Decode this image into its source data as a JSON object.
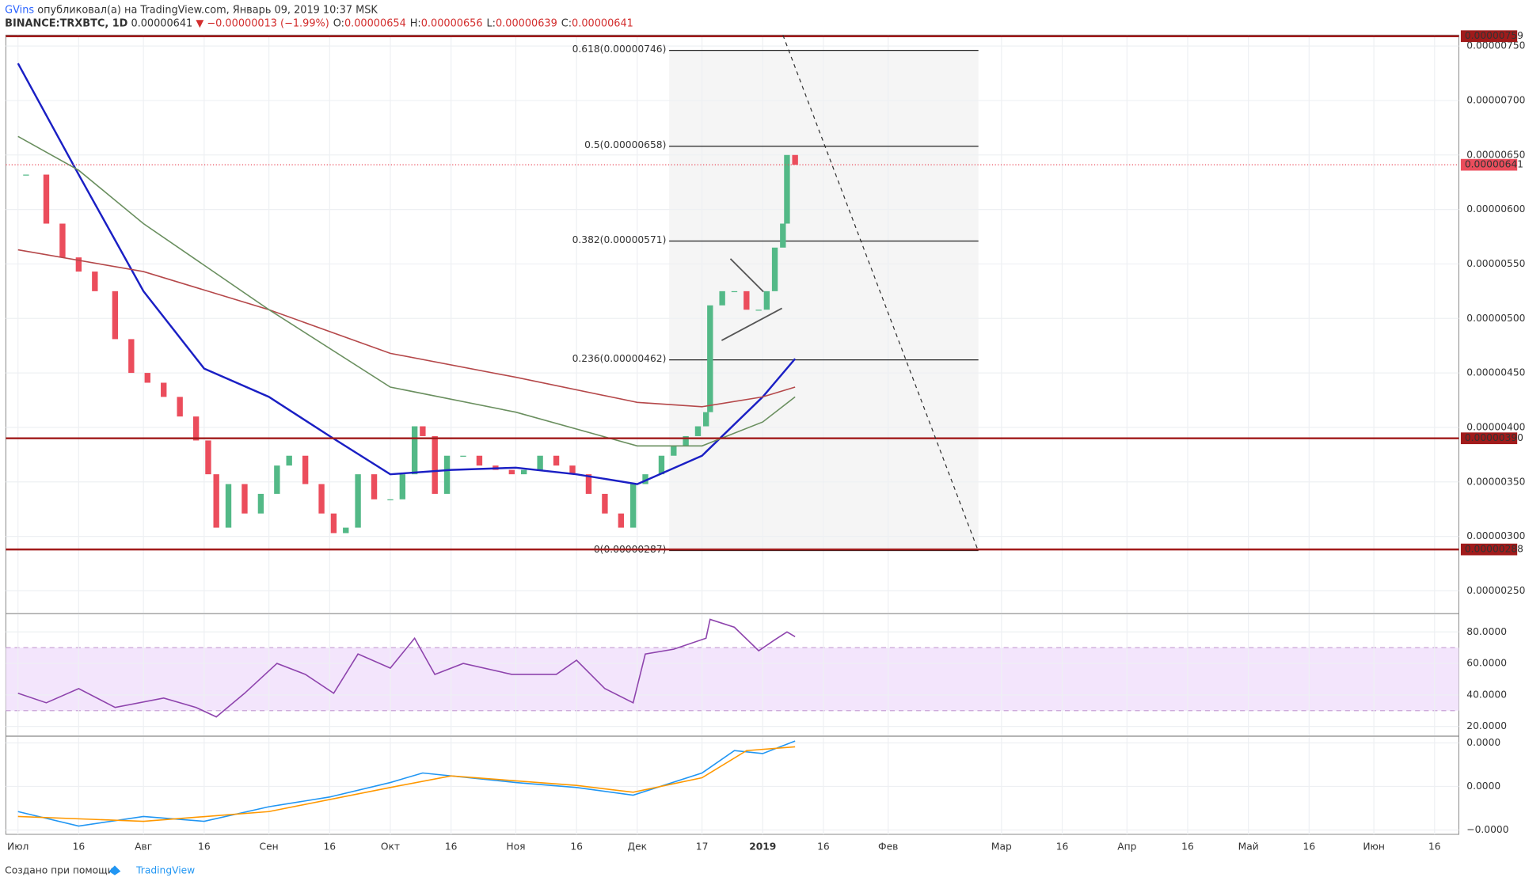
{
  "header": {
    "author": "GVins",
    "published": "опубликовал(а) на TradingView.com, Январь 09, 2019 10:37 MSK",
    "symbol": "BINANCE:TRXBTC, 1D",
    "last": "0.00000641",
    "arrow": "▼",
    "change": "−0.00000013 (−1.99%)",
    "ohlc": [
      {
        "key": "O:",
        "value": "0.00000654"
      },
      {
        "key": "H:",
        "value": "0.00000656"
      },
      {
        "key": "L:",
        "value": "0.00000639"
      },
      {
        "key": "C:",
        "value": "0.00000641"
      }
    ]
  },
  "footer": {
    "text": "Создано при помощи",
    "brand": "TradingView"
  },
  "chart_data": [
    {
      "type": "candlestick",
      "up_color": "#53b987",
      "down_color": "#eb4d5c",
      "xlim": [
        -3,
        356
      ],
      "xticks": [
        {
          "value": 0,
          "label": "Июл"
        },
        {
          "value": 15,
          "label": "16"
        },
        {
          "value": 31,
          "label": "Авг"
        },
        {
          "value": 46,
          "label": "16"
        },
        {
          "value": 62,
          "label": "Сен"
        },
        {
          "value": 77,
          "label": "16"
        },
        {
          "value": 92,
          "label": "Окт"
        },
        {
          "value": 107,
          "label": "16"
        },
        {
          "value": 123,
          "label": "Ноя"
        },
        {
          "value": 138,
          "label": "16"
        },
        {
          "value": 153,
          "label": "Дек"
        },
        {
          "value": 169,
          "label": "17"
        },
        {
          "value": 184,
          "label": "2019"
        },
        {
          "value": 199,
          "label": "16"
        },
        {
          "value": 215,
          "label": "Фев"
        },
        {
          "value": 243,
          "label": "Мар"
        },
        {
          "value": 258,
          "label": "16"
        },
        {
          "value": 274,
          "label": "Апр"
        },
        {
          "value": 289,
          "label": "16"
        },
        {
          "value": 304,
          "label": "Май"
        },
        {
          "value": 319,
          "label": "16"
        },
        {
          "value": 335,
          "label": "Июн"
        },
        {
          "value": 350,
          "label": "16"
        }
      ],
      "ylim": [
        2.3e-06,
        7.6e-06
      ],
      "yticks": [
        {
          "value": 2.5e-06,
          "label": "0.00000250"
        },
        {
          "value": 3e-06,
          "label": "0.00000300"
        },
        {
          "value": 3.5e-06,
          "label": "0.00000350"
        },
        {
          "value": 4e-06,
          "label": "0.00000400"
        },
        {
          "value": 4.5e-06,
          "label": "0.00000450"
        },
        {
          "value": 5e-06,
          "label": "0.00000500"
        },
        {
          "value": 5.5e-06,
          "label": "0.00000550"
        },
        {
          "value": 6e-06,
          "label": "0.00000600"
        },
        {
          "value": 6.5e-06,
          "label": "0.00000650"
        },
        {
          "value": 7e-06,
          "label": "0.00000700"
        },
        {
          "value": 7.5e-06,
          "label": "0.00000750"
        }
      ],
      "x": [
        2,
        7,
        11,
        15,
        19,
        24,
        28,
        32,
        36,
        40,
        44,
        47,
        49,
        52,
        56,
        60,
        64,
        67,
        71,
        75,
        78,
        81,
        84,
        88,
        92,
        95,
        98,
        100,
        103,
        106,
        110,
        114,
        118,
        122,
        125,
        129,
        133,
        137,
        141,
        145,
        149,
        152,
        155,
        159,
        162,
        165,
        168,
        170,
        171,
        174,
        177,
        180,
        183,
        185,
        187,
        189,
        190,
        192
      ],
      "values": [
        6.32e-06,
        5.87e-06,
        5.56e-06,
        5.43e-06,
        5.25e-06,
        4.81e-06,
        4.5e-06,
        4.41e-06,
        4.28e-06,
        4.1e-06,
        3.88e-06,
        3.57e-06,
        3.08e-06,
        3.48e-06,
        3.21e-06,
        3.39e-06,
        3.65e-06,
        3.74e-06,
        3.48e-06,
        3.21e-06,
        3.03e-06,
        3.08e-06,
        3.57e-06,
        3.34e-06,
        3.34e-06,
        3.57e-06,
        4.01e-06,
        3.92e-06,
        3.39e-06,
        3.74e-06,
        3.74e-06,
        3.65e-06,
        3.61e-06,
        3.57e-06,
        3.61e-06,
        3.74e-06,
        3.65e-06,
        3.57e-06,
        3.39e-06,
        3.21e-06,
        3.08e-06,
        3.48e-06,
        3.57e-06,
        3.74e-06,
        3.83e-06,
        3.92e-06,
        4.01e-06,
        4.14e-06,
        5.12e-06,
        5.25e-06,
        5.25e-06,
        5.08e-06,
        5.08e-06,
        5.25e-06,
        5.65e-06,
        5.87e-06,
        6.5e-06,
        6.41e-06
      ],
      "series": [
        {
          "color": "#1a1fc4",
          "x": [
            0,
            15,
            31,
            46,
            62,
            77,
            92,
            107,
            123,
            138,
            153,
            169,
            184,
            192
          ],
          "values": [
            7.34e-06,
            6.32e-06,
            5.25e-06,
            4.54e-06,
            4.28e-06,
            3.92e-06,
            3.57e-06,
            3.61e-06,
            3.63e-06,
            3.57e-06,
            3.48e-06,
            3.74e-06,
            4.28e-06,
            4.63e-06
          ]
        },
        {
          "color": "#b5484a",
          "x": [
            0,
            31,
            62,
            92,
            123,
            153,
            169,
            184,
            192
          ],
          "values": [
            5.63e-06,
            5.43e-06,
            5.08e-06,
            4.68e-06,
            4.46e-06,
            4.23e-06,
            4.19e-06,
            4.28e-06,
            4.37e-06
          ]
        },
        {
          "color": "#6a8f5f",
          "x": [
            0,
            15,
            31,
            62,
            92,
            123,
            153,
            169,
            184,
            192
          ],
          "values": [
            6.67e-06,
            6.36e-06,
            5.87e-06,
            5.08e-06,
            4.37e-06,
            4.14e-06,
            3.83e-06,
            3.83e-06,
            4.05e-06,
            4.28e-06
          ]
        }
      ],
      "levels": [
        7.59e-06,
        {
          "value": 3.9e-06,
          "label": "0.00000390"
        },
        2.88e-06
      ],
      "level_color": "#a11b1b",
      "last_price": 6.41e-06,
      "fib_levels": [
        {
          "label": "0.618(0.00000746)",
          "value": 7.46e-06
        },
        {
          "label": "0.5(0.00000658)",
          "value": 6.58e-06
        },
        {
          "label": "0.382(0.00000571)",
          "value": 5.71e-06
        },
        {
          "label": "0.236(0.00000462)",
          "value": 4.62e-06
        },
        {
          "label": "0(0.00000287)",
          "value": 2.87e-06
        }
      ]
    },
    {
      "type": "line",
      "ylim": [
        14.4,
        91
      ],
      "yticks": [
        {
          "value": 20,
          "label": "20.0000"
        },
        {
          "value": 40,
          "label": "40.0000"
        },
        {
          "value": 60,
          "label": "60.0000"
        },
        {
          "value": 80,
          "label": "80.0000"
        }
      ],
      "band": [
        30,
        70
      ],
      "band_color": "#f3e5fc",
      "series": [
        {
          "color": "#8e44ad",
          "x": [
            0,
            7,
            15,
            24,
            36,
            44,
            49,
            56,
            64,
            71,
            78,
            84,
            92,
            98,
            103,
            110,
            122,
            133,
            138,
            145,
            152,
            155,
            162,
            170,
            171,
            177,
            183,
            187,
            190,
            192
          ],
          "values": [
            41,
            35,
            44,
            32,
            38,
            32,
            26,
            41,
            60,
            53,
            41,
            66,
            57,
            76,
            53,
            60,
            53,
            53,
            62,
            44,
            35,
            66,
            69,
            76,
            88,
            83,
            68,
            75,
            80,
            77
          ]
        }
      ]
    },
    {
      "type": "line",
      "ylim": [
        -3.3e-07,
        3.4e-07
      ],
      "yticks": [
        {
          "value": -3e-07,
          "label": "−0.0000"
        },
        {
          "value": 0,
          "label": "0.0000"
        },
        {
          "value": 3e-07,
          "label": "0.0000"
        }
      ],
      "series": [
        {
          "color": "#2196f3",
          "x": [
            0,
            15,
            31,
            46,
            62,
            77,
            92,
            100,
            123,
            138,
            152,
            169,
            177,
            184,
            192
          ],
          "values": [
            -1.73e-07,
            -2.73e-07,
            -2.07e-07,
            -2.4e-07,
            -1.4e-07,
            -7.3e-08,
            2.7e-08,
            9.3e-08,
            2.7e-08,
            -7e-09,
            -6e-08,
            9.3e-08,
            2.47e-07,
            2.27e-07,
            3.13e-07
          ]
        },
        {
          "color": "#ff9800",
          "x": [
            0,
            31,
            62,
            92,
            107,
            138,
            152,
            169,
            180,
            192
          ],
          "values": [
            -2.07e-07,
            -2.4e-07,
            -1.73e-07,
            -7e-09,
            7.3e-08,
            7e-09,
            -4e-08,
            6e-08,
            2.47e-07,
            2.73e-07
          ]
        }
      ]
    }
  ]
}
